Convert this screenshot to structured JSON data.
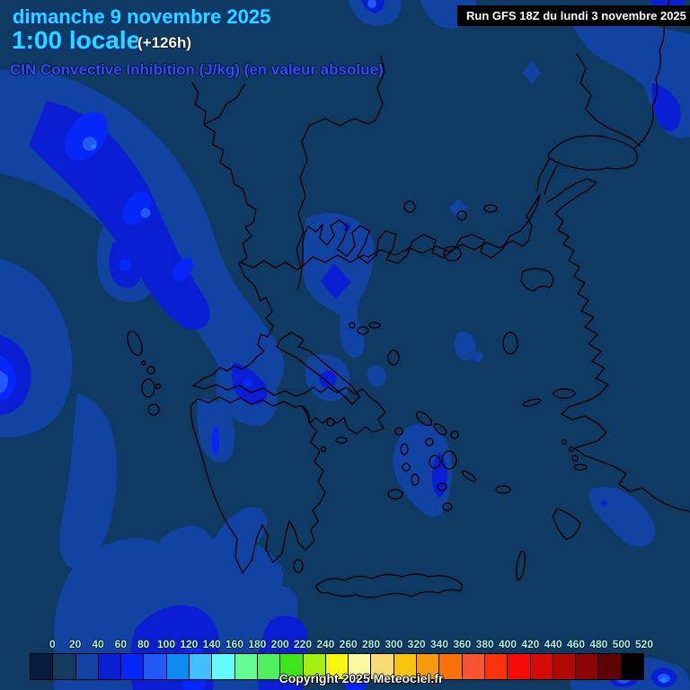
{
  "header": {
    "date_line": "dimanche 9 novembre 2025",
    "time_line": "1:00 locale",
    "offset": "(+126h)",
    "param_line": "CIN Convective Inhibition (J/kg) (en valeur absolue)",
    "run_info": "Run GFS 18Z du lundi 3 novembre 2025"
  },
  "footer": {
    "copyright": "Copyright 2025 Meteociel.fr"
  },
  "colorbar": {
    "labels": [
      0,
      20,
      40,
      60,
      80,
      100,
      120,
      140,
      160,
      180,
      200,
      220,
      240,
      260,
      280,
      300,
      320,
      340,
      360,
      380,
      400,
      420,
      440,
      460,
      480,
      500,
      520
    ],
    "cell_colors": [
      "#061a3e",
      "#133a5f",
      "#1144a2",
      "#0a1fd4",
      "#0527fa",
      "#2457f7",
      "#0b8cf2",
      "#3fc0fa",
      "#65fafd",
      "#65fa92",
      "#4ff05e",
      "#3ce41a",
      "#a2f00c",
      "#f7f70c",
      "#f9f9a0",
      "#f8da72",
      "#f8c40c",
      "#f8990c",
      "#f8720c",
      "#f85432",
      "#f8320c",
      "#f70a06",
      "#d50b06",
      "#b20906",
      "#8e0505",
      "#5f0404",
      "#000000"
    ]
  },
  "map": {
    "palette": {
      "background": "#0e3a64",
      "map_border": "#000000",
      "level1": "#1144a2",
      "level2": "#0a1fd4",
      "level3": "#0527fa",
      "level4": "#2457f7",
      "level5": "#0b8cf2"
    }
  },
  "text_colors": {
    "title_cyan": "#1fdffd",
    "offset_white": "#ffffff",
    "param_blue": "#2d4ef2",
    "scale_label": "#a9f1d3"
  }
}
